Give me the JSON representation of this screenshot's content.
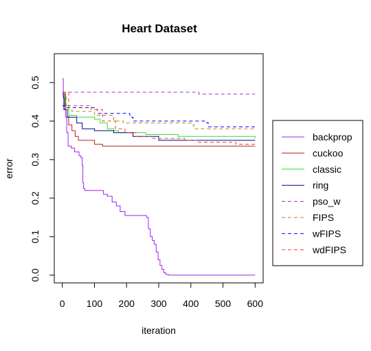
{
  "chart_data": {
    "type": "line",
    "title": "Heart Dataset",
    "xlabel": "iteration",
    "ylabel": "error",
    "xlim": [
      -25,
      625
    ],
    "ylim": [
      -0.02,
      0.575
    ],
    "xticks": [
      0,
      100,
      200,
      300,
      400,
      500,
      600
    ],
    "yticks": [
      0.0,
      0.1,
      0.2,
      0.3,
      0.4,
      0.5
    ],
    "ytick_labels": [
      "0.0",
      "0.1",
      "0.2",
      "0.3",
      "0.4",
      "0.5"
    ],
    "grid": false,
    "legend_position": "right",
    "series": [
      {
        "name": "backprop",
        "color": "#a020f0",
        "dash": "solid",
        "points": [
          [
            0,
            0.51
          ],
          [
            3,
            0.46
          ],
          [
            6,
            0.43
          ],
          [
            10,
            0.41
          ],
          [
            14,
            0.37
          ],
          [
            18,
            0.335
          ],
          [
            28,
            0.33
          ],
          [
            38,
            0.32
          ],
          [
            52,
            0.31
          ],
          [
            58,
            0.305
          ],
          [
            62,
            0.285
          ],
          [
            64,
            0.24
          ],
          [
            66,
            0.225
          ],
          [
            70,
            0.22
          ],
          [
            100,
            0.22
          ],
          [
            120,
            0.22
          ],
          [
            128,
            0.21
          ],
          [
            140,
            0.205
          ],
          [
            155,
            0.19
          ],
          [
            168,
            0.18
          ],
          [
            180,
            0.165
          ],
          [
            195,
            0.155
          ],
          [
            250,
            0.155
          ],
          [
            262,
            0.15
          ],
          [
            268,
            0.12
          ],
          [
            274,
            0.1
          ],
          [
            280,
            0.09
          ],
          [
            286,
            0.08
          ],
          [
            292,
            0.06
          ],
          [
            298,
            0.04
          ],
          [
            304,
            0.025
          ],
          [
            310,
            0.015
          ],
          [
            316,
            0.006
          ],
          [
            322,
            0.002
          ],
          [
            330,
            0.0
          ],
          [
            600,
            0.0
          ]
        ]
      },
      {
        "name": "cuckoo",
        "color": "#b22222",
        "dash": "solid",
        "points": [
          [
            0,
            0.475
          ],
          [
            10,
            0.43
          ],
          [
            20,
            0.39
          ],
          [
            30,
            0.375
          ],
          [
            40,
            0.36
          ],
          [
            50,
            0.35
          ],
          [
            100,
            0.34
          ],
          [
            125,
            0.335
          ],
          [
            600,
            0.335
          ]
        ]
      },
      {
        "name": "classic",
        "color": "#33dd33",
        "dash": "solid",
        "points": [
          [
            0,
            0.47
          ],
          [
            8,
            0.44
          ],
          [
            20,
            0.415
          ],
          [
            45,
            0.41
          ],
          [
            100,
            0.405
          ],
          [
            118,
            0.395
          ],
          [
            140,
            0.38
          ],
          [
            160,
            0.375
          ],
          [
            175,
            0.37
          ],
          [
            260,
            0.365
          ],
          [
            360,
            0.36
          ],
          [
            560,
            0.36
          ],
          [
            600,
            0.355
          ]
        ]
      },
      {
        "name": "ring",
        "color": "#00008b",
        "dash": "solid",
        "points": [
          [
            0,
            0.475
          ],
          [
            5,
            0.43
          ],
          [
            15,
            0.41
          ],
          [
            45,
            0.395
          ],
          [
            62,
            0.38
          ],
          [
            100,
            0.375
          ],
          [
            160,
            0.37
          ],
          [
            220,
            0.36
          ],
          [
            300,
            0.35
          ],
          [
            600,
            0.35
          ]
        ]
      },
      {
        "name": "pso_w",
        "color": "#9932cc",
        "dash": "dashed",
        "points": [
          [
            0,
            0.475
          ],
          [
            420,
            0.475
          ],
          [
            425,
            0.47
          ],
          [
            600,
            0.47
          ]
        ]
      },
      {
        "name": "FIPS",
        "color": "#b8860b",
        "dash": "dashed",
        "points": [
          [
            0,
            0.47
          ],
          [
            12,
            0.43
          ],
          [
            30,
            0.425
          ],
          [
            100,
            0.415
          ],
          [
            160,
            0.4
          ],
          [
            190,
            0.395
          ],
          [
            400,
            0.39
          ],
          [
            410,
            0.38
          ],
          [
            600,
            0.38
          ]
        ]
      },
      {
        "name": "wFIPS",
        "color": "#0000ff",
        "dash": "dashed",
        "points": [
          [
            0,
            0.44
          ],
          [
            10,
            0.435
          ],
          [
            100,
            0.43
          ],
          [
            110,
            0.42
          ],
          [
            210,
            0.41
          ],
          [
            220,
            0.4
          ],
          [
            450,
            0.395
          ],
          [
            455,
            0.385
          ],
          [
            600,
            0.385
          ]
        ]
      },
      {
        "name": "wdFIPS",
        "color": "#ff3030",
        "dash": "dashed",
        "points": [
          [
            0,
            0.475
          ],
          [
            20,
            0.44
          ],
          [
            90,
            0.43
          ],
          [
            125,
            0.4
          ],
          [
            165,
            0.38
          ],
          [
            195,
            0.37
          ],
          [
            230,
            0.36
          ],
          [
            280,
            0.355
          ],
          [
            380,
            0.35
          ],
          [
            420,
            0.345
          ],
          [
            540,
            0.34
          ],
          [
            600,
            0.34
          ]
        ]
      }
    ]
  }
}
